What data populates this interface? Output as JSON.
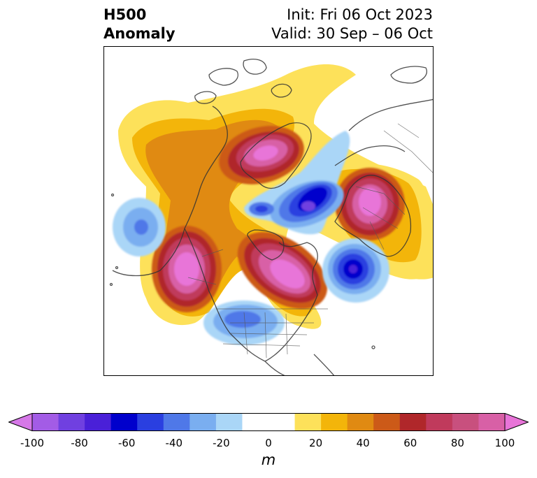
{
  "title": {
    "line1": "H500",
    "line2": "Anomaly",
    "init": "Init: Fri 06 Oct 2023",
    "valid": "Valid: 30 Sep – 06 Oct"
  },
  "colorbar": {
    "unit": "m",
    "ticks": [
      "-100",
      "-80",
      "-60",
      "-40",
      "-20",
      "0",
      "20",
      "40",
      "60",
      "80",
      "100"
    ],
    "colors": [
      "#d678e8",
      "#a35ce6",
      "#7040e0",
      "#4a20d8",
      "#0000cc",
      "#2a3fe0",
      "#4f78e8",
      "#7aaef0",
      "#aad6f7",
      "#ffffff",
      "#ffffff",
      "#fde15a",
      "#f3b50a",
      "#e08a12",
      "#cc5a18",
      "#b0272a",
      "#c03a5c",
      "#c8507e",
      "#d860a6",
      "#e874d8"
    ]
  }
}
